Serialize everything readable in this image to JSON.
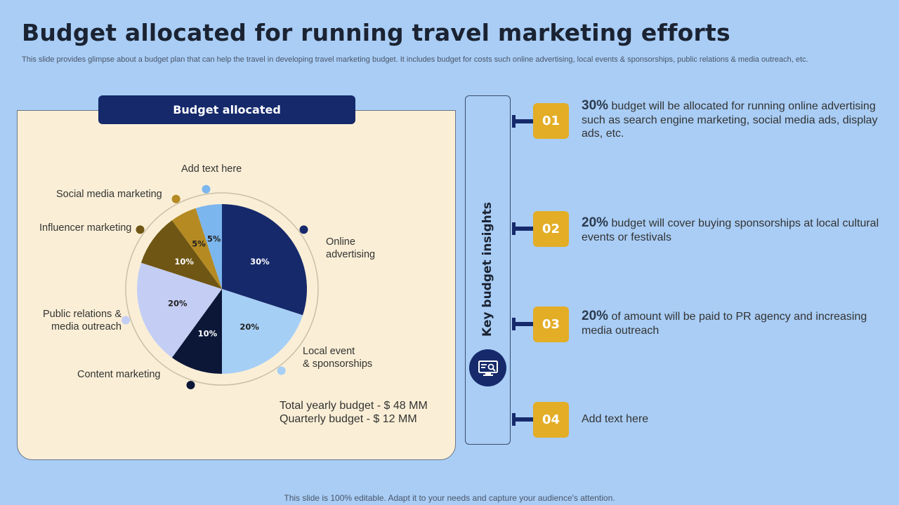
{
  "title": "Budget allocated for running travel marketing efforts",
  "subtitle": "This slide provides glimpse about a budget plan that can help the travel in developing travel marketing budget. It includes budget for costs such online advertising, local events & sponsorships, public relations & media outreach, etc.",
  "panel": {
    "header": "Budget allocated",
    "totals": [
      "Total yearly budget - $ 48 MM",
      "Quarterly budget - $ 12 MM"
    ]
  },
  "chart_data": {
    "type": "pie",
    "slices": [
      {
        "label": "Online advertising",
        "value": 30,
        "value_label": "30%",
        "color": "#16296b",
        "label_color": "#ffffff"
      },
      {
        "label": "Local event & sponsorships",
        "value": 20,
        "value_label": "20%",
        "color": "#a6cff6",
        "label_color": "#222222"
      },
      {
        "label": "Content marketing",
        "value": 10,
        "value_label": "10%",
        "color": "#0c1738",
        "label_color": "#ffffff"
      },
      {
        "label": "Public relations & media outreach",
        "value": 20,
        "value_label": "20%",
        "color": "#c4cef4",
        "label_color": "#222222"
      },
      {
        "label": "Influencer marketing",
        "value": 10,
        "value_label": "10%",
        "color": "#6f5614",
        "label_color": "#ffffff"
      },
      {
        "label": "Social media marketing",
        "value": 5,
        "value_label": "5%",
        "color": "#b58a22",
        "label_color": "#222222"
      },
      {
        "label": "Add text here",
        "value": 5,
        "value_label": "5%",
        "color": "#7cb6ee",
        "label_color": "#222222"
      }
    ]
  },
  "pie_labels": {
    "online": [
      "Online",
      "advertising"
    ],
    "local": [
      "Local event",
      "& sponsorships"
    ],
    "content": [
      "Content marketing"
    ],
    "pr": [
      "Public relations &",
      "media outreach"
    ],
    "influencer": [
      "Influencer marketing"
    ],
    "social": [
      "Social media marketing"
    ],
    "addtext": [
      "Add text here"
    ]
  },
  "sidebar": {
    "label": "Key budget insights",
    "icon": "monitor-search-icon"
  },
  "insights": [
    {
      "number": "01",
      "pct": "30%",
      "text": " budget will be allocated for running online advertising such as search engine marketing, social media ads, display ads, etc."
    },
    {
      "number": "02",
      "pct": "20%",
      "text": " budget will cover buying sponsorships at local cultural events or festivals"
    },
    {
      "number": "03",
      "pct": "20%",
      "text": " of amount will be paid to PR agency and increasing media outreach"
    },
    {
      "number": "04",
      "pct": "",
      "text": "Add text here"
    }
  ],
  "footer": "This slide is 100% editable. Adapt it to your needs and capture your audience's attention.",
  "colors": {
    "background": "#a9cdf5",
    "navy": "#15296b",
    "gold": "#e3ad26",
    "panel": "#faefd6"
  }
}
